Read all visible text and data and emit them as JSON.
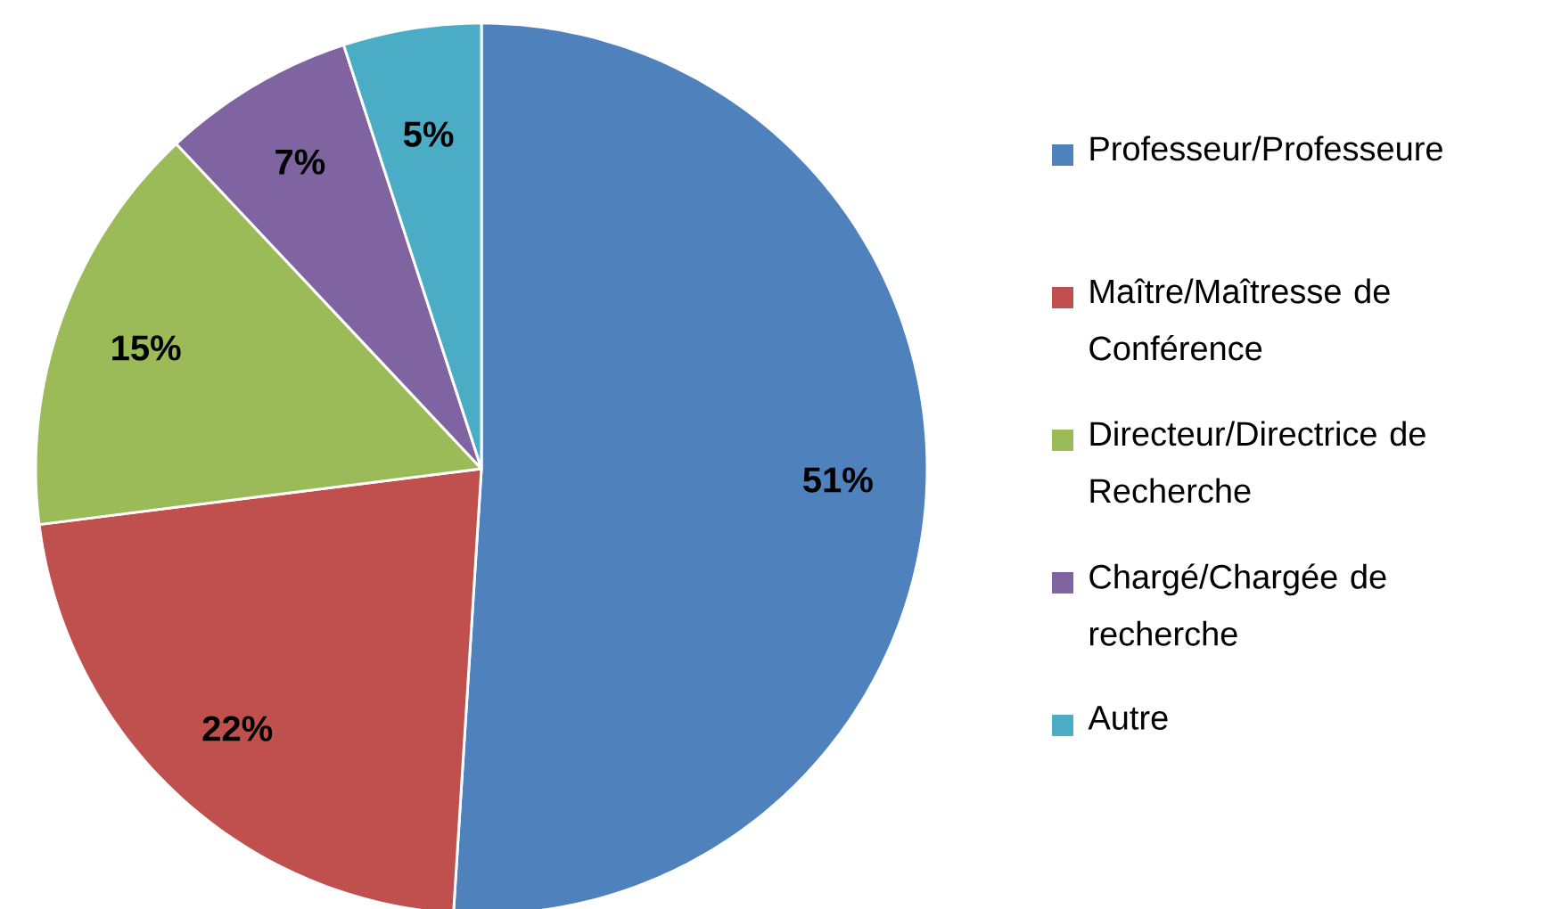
{
  "chart_data": {
    "type": "pie",
    "categories": [
      "Professeur/Professeure",
      "Maître/Maîtresse de Conférence",
      "Directeur/Directrice de Recherche",
      "Chargé/Chargée de recherche",
      "Autre"
    ],
    "values": [
      51,
      22,
      15,
      7,
      5
    ],
    "value_labels": [
      "51%",
      "22%",
      "15%",
      "7%",
      "5%"
    ],
    "colors": [
      "#4f81bd",
      "#c0504d",
      "#9bbb59",
      "#8064a2",
      "#4bacc6"
    ],
    "legend": "right"
  }
}
